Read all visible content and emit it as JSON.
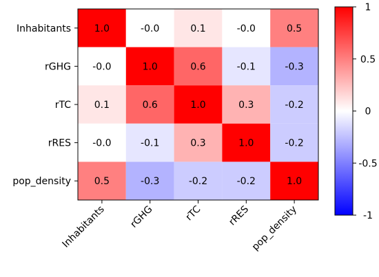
{
  "chart_data": {
    "type": "heatmap",
    "row_labels": [
      "Inhabitants",
      "rGHG",
      "rTC",
      "rRES",
      "pop_density"
    ],
    "col_labels": [
      "Inhabitants",
      "rGHG",
      "rTC",
      "rRES",
      "pop_density"
    ],
    "values": [
      [
        1.0,
        -0.0,
        0.1,
        -0.0,
        0.5
      ],
      [
        -0.0,
        1.0,
        0.6,
        -0.1,
        -0.3
      ],
      [
        0.1,
        0.6,
        1.0,
        0.3,
        -0.2
      ],
      [
        -0.0,
        -0.1,
        0.3,
        1.0,
        -0.2
      ],
      [
        0.5,
        -0.3,
        -0.2,
        -0.2,
        1.0
      ]
    ],
    "display_values": [
      [
        "1.0",
        "-0.0",
        "0.1",
        "-0.0",
        "0.5"
      ],
      [
        "-0.0",
        "1.0",
        "0.6",
        "-0.1",
        "-0.3"
      ],
      [
        "0.1",
        "0.6",
        "1.0",
        "0.3",
        "-0.2"
      ],
      [
        "-0.0",
        "-0.1",
        "0.3",
        "1.0",
        "-0.2"
      ],
      [
        "0.5",
        "-0.3",
        "-0.2",
        "-0.2",
        "1.0"
      ]
    ],
    "colorbar": {
      "min": -1,
      "max": 1,
      "ticks": [
        "1",
        "0.5",
        "0",
        "-0.5",
        "-1"
      ],
      "colors": {
        "negative": "#0000ff",
        "neutral": "#ffffff",
        "positive": "#ff0000"
      }
    },
    "title": "",
    "xlabel": "",
    "ylabel": ""
  }
}
